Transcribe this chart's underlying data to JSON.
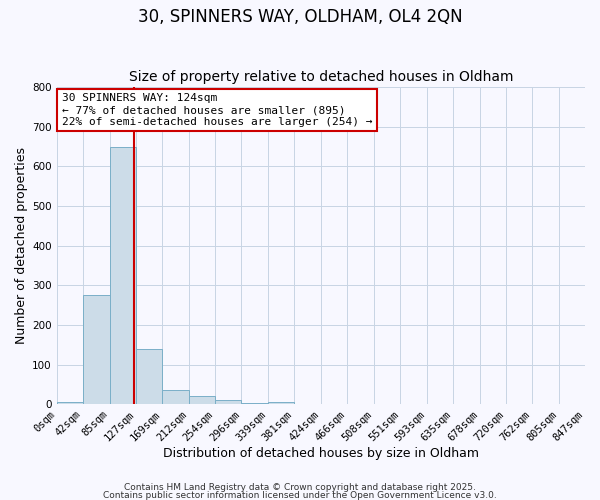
{
  "title": "30, SPINNERS WAY, OLDHAM, OL4 2QN",
  "subtitle": "Size of property relative to detached houses in Oldham",
  "xlabel": "Distribution of detached houses by size in Oldham",
  "ylabel": "Number of detached properties",
  "bar_color": "#ccdce8",
  "bar_edge_color": "#7aafc8",
  "background_color": "#f8f8ff",
  "grid_color": "#c8d4e4",
  "vline_x": 124,
  "vline_color": "#cc0000",
  "bin_edges": [
    0,
    42,
    85,
    127,
    169,
    212,
    254,
    296,
    339,
    381,
    424,
    466,
    508,
    551,
    593,
    635,
    678,
    720,
    762,
    805,
    847
  ],
  "bin_labels": [
    "0sqm",
    "42sqm",
    "85sqm",
    "127sqm",
    "169sqm",
    "212sqm",
    "254sqm",
    "296sqm",
    "339sqm",
    "381sqm",
    "424sqm",
    "466sqm",
    "508sqm",
    "551sqm",
    "593sqm",
    "635sqm",
    "678sqm",
    "720sqm",
    "762sqm",
    "805sqm",
    "847sqm"
  ],
  "bar_heights": [
    5,
    275,
    650,
    140,
    37,
    20,
    10,
    3,
    5,
    0,
    2,
    0,
    0,
    0,
    0,
    0,
    0,
    0,
    0,
    0
  ],
  "ylim": [
    0,
    800
  ],
  "yticks": [
    0,
    100,
    200,
    300,
    400,
    500,
    600,
    700,
    800
  ],
  "annotation_line1": "30 SPINNERS WAY: 124sqm",
  "annotation_line2": "← 77% of detached houses are smaller (895)",
  "annotation_line3": "22% of semi-detached houses are larger (254) →",
  "annotation_box_color": "#cc0000",
  "footer_line1": "Contains HM Land Registry data © Crown copyright and database right 2025.",
  "footer_line2": "Contains public sector information licensed under the Open Government Licence v3.0.",
  "title_fontsize": 12,
  "subtitle_fontsize": 10,
  "axis_label_fontsize": 9,
  "tick_fontsize": 7.5,
  "annotation_fontsize": 8,
  "footer_fontsize": 6.5
}
